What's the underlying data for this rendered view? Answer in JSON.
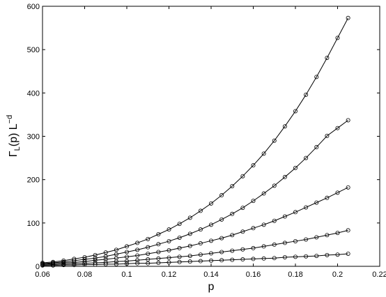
{
  "chart_data": {
    "type": "line",
    "title": "",
    "xlabel": "p",
    "ylabel": {
      "gamma": "Γ",
      "sub": "L",
      "mid": "(p) L",
      "sup": "−d"
    },
    "xlim": [
      0.06,
      0.22
    ],
    "ylim": [
      0,
      600
    ],
    "xticks": [
      "0.06",
      "0.08",
      "0.1",
      "0.12",
      "0.14",
      "0.16",
      "0.18",
      "0.2",
      "0.22"
    ],
    "yticks": [
      "0",
      "100",
      "200",
      "300",
      "400",
      "500",
      "600"
    ],
    "grid": false,
    "legend": "none",
    "marker": "open-circle",
    "x": [
      0.06,
      0.065,
      0.07,
      0.075,
      0.08,
      0.085,
      0.09,
      0.095,
      0.1,
      0.105,
      0.11,
      0.115,
      0.12,
      0.125,
      0.13,
      0.135,
      0.14,
      0.145,
      0.15,
      0.155,
      0.16,
      0.165,
      0.17,
      0.175,
      0.18,
      0.185,
      0.19,
      0.195,
      0.2,
      0.205
    ],
    "series": [
      {
        "values": [
          8,
          10,
          13,
          17,
          21,
          26,
          32,
          38,
          46,
          54,
          63,
          74,
          85,
          98,
          112,
          128,
          145,
          164,
          185,
          208,
          233,
          260,
          290,
          323,
          358,
          396,
          437,
          481,
          527,
          573
        ]
      },
      {
        "values": [
          6,
          8,
          10,
          13,
          16,
          19,
          23,
          28,
          33,
          38,
          44,
          51,
          58,
          66,
          75,
          85,
          96,
          108,
          121,
          135,
          151,
          168,
          186,
          206,
          227,
          250,
          275,
          301,
          319,
          337
        ]
      },
      {
        "values": [
          5,
          6,
          8,
          9,
          11,
          14,
          16,
          19,
          22,
          25,
          29,
          33,
          37,
          42,
          47,
          53,
          59,
          65,
          72,
          80,
          88,
          96,
          105,
          115,
          125,
          136,
          147,
          158,
          170,
          182
        ]
      },
      {
        "values": [
          3,
          4,
          5,
          6,
          7,
          8,
          9,
          11,
          12,
          14,
          16,
          18,
          20,
          22,
          24,
          27,
          30,
          33,
          36,
          39,
          42,
          46,
          50,
          54,
          58,
          62,
          67,
          72,
          77,
          83
        ]
      },
      {
        "values": [
          2,
          2,
          3,
          3,
          4,
          4,
          5,
          5,
          6,
          7,
          7,
          8,
          9,
          10,
          11,
          12,
          13,
          14,
          15,
          16,
          17,
          18,
          19,
          21,
          22,
          23,
          24,
          26,
          27,
          29
        ]
      }
    ]
  }
}
